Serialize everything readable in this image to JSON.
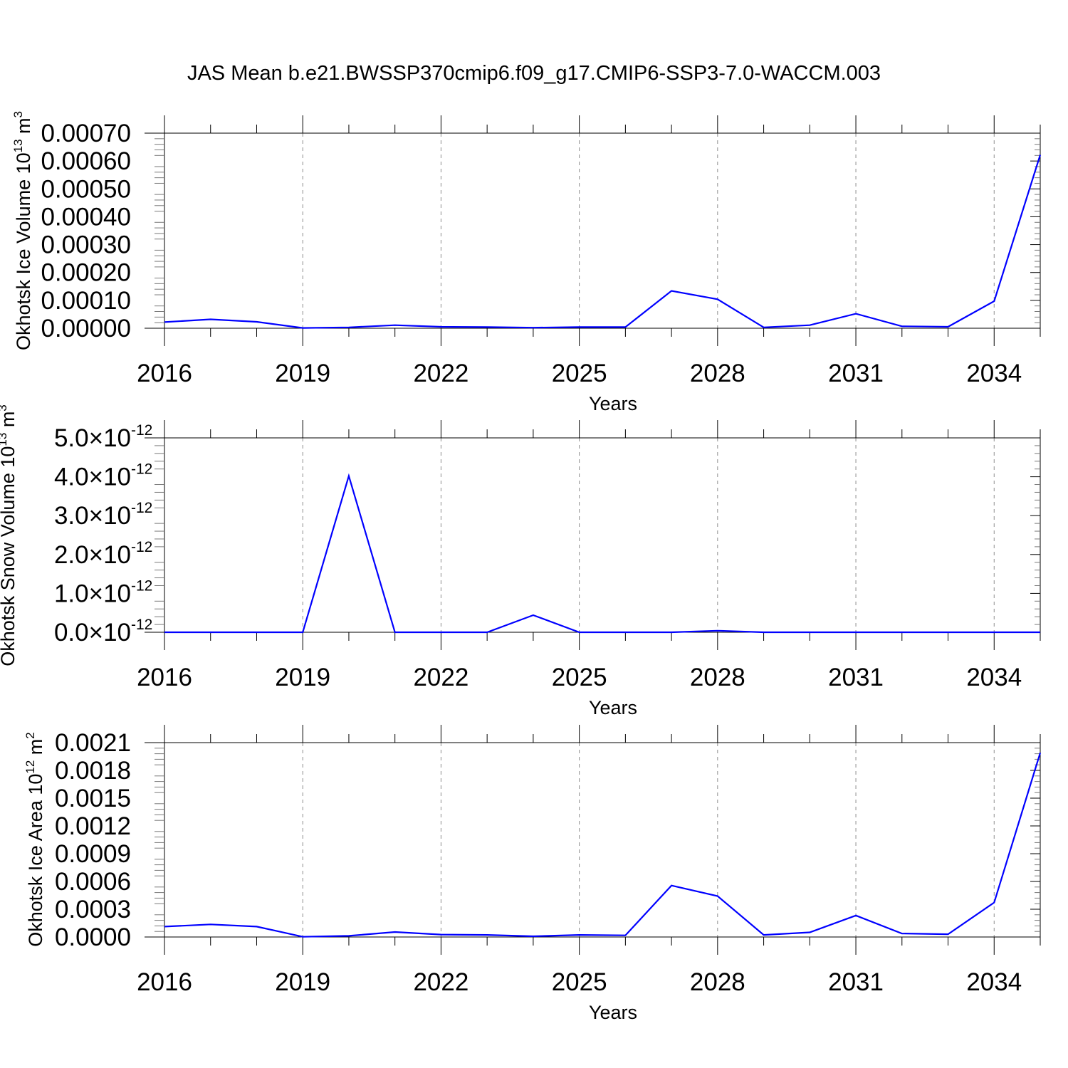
{
  "title": "JAS Mean b.e21.BWSSP370cmip6.f09_g17.CMIP6-SSP3-7.0-WACCM.003",
  "line_color": "#0000ff",
  "chart_data": [
    {
      "type": "line",
      "ylabel_main": "Okhotsk Ice Volume 10",
      "ylabel_exp": "13",
      "ylabel_unit": " m",
      "ylabel_unit_exp": "3",
      "xlabel": "Years",
      "xlim": [
        2016,
        2035
      ],
      "ylim": [
        0,
        0.0007
      ],
      "x_ticks": [
        2016,
        2019,
        2022,
        2025,
        2028,
        2031,
        2034
      ],
      "x_tick_labels": [
        "2016",
        "2019",
        "2022",
        "2025",
        "2028",
        "2031",
        "2034"
      ],
      "y_ticks": [
        0,
        0.0001,
        0.0002,
        0.0003,
        0.0004,
        0.0005,
        0.0006,
        0.0007
      ],
      "y_tick_labels": [
        "0.00000",
        "0.00010",
        "0.00020",
        "0.00030",
        "0.00040",
        "0.00050",
        "0.00060",
        "0.00070"
      ],
      "x": [
        2016,
        2017,
        2018,
        2019,
        2020,
        2021,
        2022,
        2023,
        2024,
        2025,
        2026,
        2027,
        2028,
        2029,
        2030,
        2031,
        2032,
        2033,
        2034,
        2035
      ],
      "y": [
        2.2e-05,
        3.2e-05,
        2.3e-05,
        1e-06,
        3e-06,
        1.1e-05,
        5e-06,
        4e-06,
        2e-06,
        4e-06,
        4e-06,
        0.000134,
        0.000104,
        3e-06,
        1.1e-05,
        5.2e-05,
        7e-06,
        5e-06,
        9.7e-05,
        0.000622
      ],
      "grid": true
    },
    {
      "type": "line",
      "ylabel_main": "Okhotsk Snow Volume 10",
      "ylabel_exp": "13",
      "ylabel_unit": " m",
      "ylabel_unit_exp": "3",
      "xlabel": "Years",
      "xlim": [
        2016,
        2035
      ],
      "ylim": [
        0,
        5e-12
      ],
      "x_ticks": [
        2016,
        2019,
        2022,
        2025,
        2028,
        2031,
        2034
      ],
      "x_tick_labels": [
        "2016",
        "2019",
        "2022",
        "2025",
        "2028",
        "2031",
        "2034"
      ],
      "y_ticks": [
        0,
        1e-12,
        2e-12,
        3e-12,
        4e-12,
        5e-12
      ],
      "y_tick_mantissas": [
        "0.0",
        "1.0",
        "2.0",
        "3.0",
        "4.0",
        "5.0"
      ],
      "y_tick_times": "×10",
      "y_tick_exp": "-12",
      "x": [
        2016,
        2017,
        2018,
        2019,
        2020,
        2021,
        2022,
        2023,
        2024,
        2025,
        2026,
        2027,
        2028,
        2029,
        2030,
        2031,
        2032,
        2033,
        2034,
        2035
      ],
      "y": [
        0,
        0,
        0,
        0,
        4.02e-12,
        0,
        0,
        0,
        4.4e-13,
        0,
        0,
        0,
        4e-14,
        0,
        0,
        0,
        0,
        0,
        0,
        0
      ],
      "grid": true
    },
    {
      "type": "line",
      "ylabel_main": "Okhotsk Ice Area 10",
      "ylabel_exp": "12",
      "ylabel_unit": " m",
      "ylabel_unit_exp": "2",
      "xlabel": "Years",
      "xlim": [
        2016,
        2035
      ],
      "ylim": [
        0,
        0.0021
      ],
      "x_ticks": [
        2016,
        2019,
        2022,
        2025,
        2028,
        2031,
        2034
      ],
      "x_tick_labels": [
        "2016",
        "2019",
        "2022",
        "2025",
        "2028",
        "2031",
        "2034"
      ],
      "y_ticks": [
        0,
        0.0003,
        0.0006,
        0.0009,
        0.0012,
        0.0015,
        0.0018,
        0.0021
      ],
      "y_tick_labels": [
        "0.0000",
        "0.0003",
        "0.0006",
        "0.0009",
        "0.0012",
        "0.0015",
        "0.0018",
        "0.0021"
      ],
      "x": [
        2016,
        2017,
        2018,
        2019,
        2020,
        2021,
        2022,
        2023,
        2024,
        2025,
        2026,
        2027,
        2028,
        2029,
        2030,
        2031,
        2032,
        2033,
        2034,
        2035
      ],
      "y": [
        0.000112,
        0.000136,
        0.000112,
        2e-06,
        1.2e-05,
        5.4e-05,
        2.6e-05,
        2.2e-05,
        8e-06,
        2.2e-05,
        1.8e-05,
        0.000556,
        0.000442,
        2.2e-05,
        5e-05,
        0.000232,
        3.8e-05,
        3e-05,
        0.000372,
        0.00199
      ],
      "grid": true
    }
  ]
}
